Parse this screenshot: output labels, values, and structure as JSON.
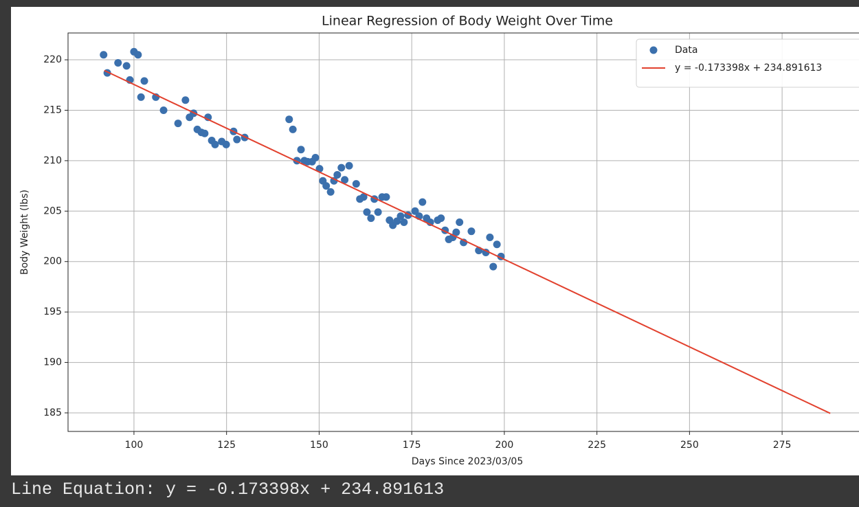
{
  "chart_data": {
    "type": "scatter",
    "title": "Linear Regression of Body Weight Over Time",
    "xlabel": "Days Since 2023/03/05",
    "ylabel": "Body Weight (lbs)",
    "xlim": [
      82.2,
      297.8
    ],
    "ylim": [
      183.16,
      222.66
    ],
    "xticks": [
      100,
      125,
      150,
      175,
      200,
      225,
      250,
      275
    ],
    "yticks": [
      185,
      190,
      195,
      200,
      205,
      210,
      215,
      220
    ],
    "grid": true,
    "legend": "upper right",
    "series": [
      {
        "name": "Data",
        "color": "#3b70ad",
        "kind": "scatter",
        "x": [
          91.8,
          92.8,
          95.7,
          98.0,
          98.9,
          100,
          101.1,
          101.9,
          102.8,
          105.9,
          108.0,
          111.9,
          113.9,
          115.0,
          116.1,
          117.1,
          118.2,
          119.1,
          120.0,
          121.0,
          121.9,
          123.7,
          124.9,
          126.9,
          127.8,
          129.9,
          141.9,
          142.9,
          144.0,
          145.1,
          146.0,
          146.9,
          148.1,
          149.0,
          150.1,
          151.0,
          151.9,
          153.1,
          154.0,
          154.9,
          156.0,
          156.9,
          158.1,
          160.0,
          161.0,
          162.0,
          162.9,
          164.0,
          164.9,
          165.9,
          167.0,
          168.1,
          169.0,
          169.9,
          171.0,
          172.0,
          172.9,
          174.0,
          175.9,
          177.0,
          177.9,
          179.0,
          180.0,
          182.0,
          182.9,
          184.0,
          185.0,
          186.1,
          187.0,
          187.9,
          189.0,
          191.1,
          193.1,
          195.0,
          196.1,
          197.0,
          198.0,
          199.1
        ],
        "values": [
          220.5,
          218.7,
          219.7,
          219.4,
          218.0,
          220.8,
          220.5,
          216.3,
          217.9,
          216.3,
          215.0,
          213.7,
          216.0,
          214.3,
          214.7,
          213.1,
          212.8,
          212.7,
          214.3,
          212.0,
          211.6,
          211.9,
          211.6,
          212.9,
          212.1,
          212.3,
          214.1,
          213.1,
          210.0,
          211.1,
          210.0,
          209.9,
          209.9,
          210.3,
          209.2,
          208.0,
          207.5,
          206.9,
          208.0,
          208.6,
          209.3,
          208.1,
          209.5,
          207.7,
          206.2,
          206.4,
          204.9,
          204.3,
          206.2,
          204.9,
          206.4,
          206.4,
          204.1,
          203.6,
          204.0,
          204.5,
          203.9,
          204.6,
          205.0,
          204.5,
          205.9,
          204.3,
          203.9,
          204.1,
          204.3,
          203.1,
          202.2,
          202.4,
          202.9,
          203.9,
          201.9,
          203.0,
          201.1,
          200.9,
          202.4,
          199.5,
          201.7,
          200.5
        ]
      },
      {
        "name": "y = -0.173398x + 234.891613",
        "color": "#e2412e",
        "kind": "line",
        "x": [
          92,
          288
        ],
        "values": [
          218.94,
          184.95
        ]
      }
    ]
  },
  "console_output": "Line Equation: y = -0.173398x + 234.891613"
}
